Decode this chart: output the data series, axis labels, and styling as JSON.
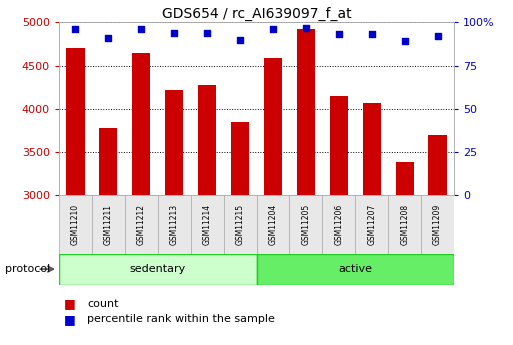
{
  "title": "GDS654 / rc_AI639097_f_at",
  "samples": [
    "GSM11210",
    "GSM11211",
    "GSM11212",
    "GSM11213",
    "GSM11214",
    "GSM11215",
    "GSM11204",
    "GSM11205",
    "GSM11206",
    "GSM11207",
    "GSM11208",
    "GSM11209"
  ],
  "counts": [
    4700,
    3780,
    4650,
    4220,
    4280,
    3850,
    4590,
    4920,
    4150,
    4060,
    3380,
    3690
  ],
  "percentile_ranks": [
    96,
    91,
    96,
    94,
    94,
    90,
    96,
    97,
    93,
    93,
    89,
    92
  ],
  "groups": [
    {
      "label": "sedentary",
      "start": 0,
      "end": 6
    },
    {
      "label": "active",
      "start": 6,
      "end": 12
    }
  ],
  "group_colors": [
    "#ccffcc",
    "#66ee66"
  ],
  "bar_color": "#cc0000",
  "dot_color": "#0000cc",
  "ylim_left": [
    3000,
    5000
  ],
  "ylim_right": [
    0,
    100
  ],
  "yticks_left": [
    3000,
    3500,
    4000,
    4500,
    5000
  ],
  "yticks_right": [
    0,
    25,
    50,
    75,
    100
  ],
  "ytick_labels_right": [
    "0",
    "25",
    "50",
    "75",
    "100%"
  ],
  "background_color": "#ffffff",
  "legend_count_label": "count",
  "legend_pct_label": "percentile rank within the sample",
  "protocol_label": "protocol"
}
